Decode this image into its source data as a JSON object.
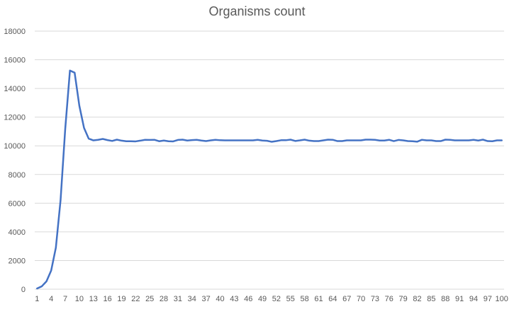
{
  "chart_data": {
    "type": "line",
    "title": "Organisms count",
    "xlabel": "",
    "ylabel": "",
    "ylim": [
      0,
      18000
    ],
    "yticks": [
      0,
      2000,
      4000,
      6000,
      8000,
      10000,
      12000,
      14000,
      16000,
      18000
    ],
    "x": [
      1,
      2,
      3,
      4,
      5,
      6,
      7,
      8,
      9,
      10,
      11,
      12,
      13,
      14,
      15,
      16,
      17,
      18,
      19,
      20,
      21,
      22,
      23,
      24,
      25,
      26,
      27,
      28,
      29,
      30,
      31,
      32,
      33,
      34,
      35,
      36,
      37,
      38,
      39,
      40,
      41,
      42,
      43,
      44,
      45,
      46,
      47,
      48,
      49,
      50,
      51,
      52,
      53,
      54,
      55,
      56,
      57,
      58,
      59,
      60,
      61,
      62,
      63,
      64,
      65,
      66,
      67,
      68,
      69,
      70,
      71,
      72,
      73,
      74,
      75,
      76,
      77,
      78,
      79,
      80,
      81,
      82,
      83,
      84,
      85,
      86,
      87,
      88,
      89,
      90,
      91,
      92,
      93,
      94,
      95,
      96,
      97,
      98,
      99,
      100
    ],
    "xtick_labels": [
      1,
      4,
      7,
      10,
      13,
      16,
      19,
      22,
      25,
      28,
      31,
      34,
      37,
      40,
      43,
      46,
      49,
      52,
      55,
      58,
      61,
      64,
      67,
      70,
      73,
      76,
      79,
      82,
      85,
      88,
      91,
      94,
      97,
      100
    ],
    "grid": true,
    "series": [
      {
        "color": "#4472C4",
        "values": [
          50,
          200,
          550,
          1300,
          2900,
          6200,
          11200,
          15250,
          15100,
          12800,
          11250,
          10500,
          10380,
          10420,
          10480,
          10400,
          10340,
          10430,
          10360,
          10320,
          10320,
          10310,
          10360,
          10420,
          10410,
          10420,
          10320,
          10370,
          10320,
          10310,
          10410,
          10430,
          10370,
          10400,
          10420,
          10370,
          10330,
          10380,
          10420,
          10390,
          10380,
          10380,
          10380,
          10380,
          10380,
          10380,
          10380,
          10420,
          10370,
          10350,
          10280,
          10330,
          10390,
          10390,
          10430,
          10340,
          10380,
          10430,
          10360,
          10330,
          10330,
          10380,
          10430,
          10420,
          10330,
          10330,
          10380,
          10380,
          10380,
          10380,
          10430,
          10430,
          10420,
          10370,
          10370,
          10420,
          10330,
          10410,
          10380,
          10330,
          10320,
          10290,
          10420,
          10380,
          10380,
          10330,
          10330,
          10430,
          10420,
          10380,
          10380,
          10380,
          10380,
          10420,
          10370,
          10430,
          10330,
          10320,
          10380,
          10380
        ]
      }
    ]
  }
}
